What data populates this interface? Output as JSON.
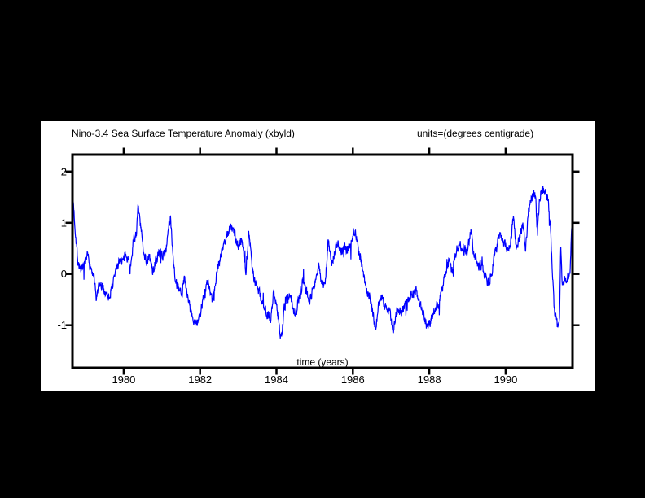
{
  "chart_data": {
    "type": "line",
    "title": "Nino-3.4 Sea Surface Temperature Anomaly (xbyld)",
    "units_label": "units=(degrees centigrade)",
    "xlabel": "time (years)",
    "x_ticks": [
      "1980",
      "1982",
      "1984",
      "1986",
      "1988",
      "1990"
    ],
    "x_tick_values": [
      1980,
      1982,
      1984,
      1986,
      1988,
      1990
    ],
    "y_ticks": [
      "2",
      "1",
      "0",
      "-1"
    ],
    "y_tick_values": [
      2,
      1,
      0,
      -1
    ],
    "xlim": [
      1978.66,
      1991.75
    ],
    "ylim": [
      -1.83,
      2.33
    ],
    "grid": false,
    "legend": "none",
    "line_color": "#0000ff",
    "axis_color": "#000000",
    "plot_bg": "#ffffff",
    "page_bg": "#000000",
    "series": [
      {
        "name": "nino34-sst-anomaly",
        "anchors": [
          [
            1978.66,
            1.62
          ],
          [
            1978.72,
            1.0
          ],
          [
            1978.8,
            0.25
          ],
          [
            1978.9,
            0.05
          ],
          [
            1979.0,
            0.18
          ],
          [
            1979.06,
            0.35
          ],
          [
            1979.15,
            0.1
          ],
          [
            1979.22,
            -0.1
          ],
          [
            1979.28,
            -0.48
          ],
          [
            1979.38,
            -0.22
          ],
          [
            1979.5,
            -0.32
          ],
          [
            1979.6,
            -0.45
          ],
          [
            1979.7,
            -0.25
          ],
          [
            1979.8,
            0.08
          ],
          [
            1979.9,
            0.3
          ],
          [
            1980.0,
            0.25
          ],
          [
            1980.08,
            0.42
          ],
          [
            1980.17,
            0.1
          ],
          [
            1980.25,
            0.6
          ],
          [
            1980.33,
            0.8
          ],
          [
            1980.38,
            1.3
          ],
          [
            1980.44,
            0.95
          ],
          [
            1980.5,
            0.55
          ],
          [
            1980.6,
            0.25
          ],
          [
            1980.68,
            0.32
          ],
          [
            1980.76,
            0.05
          ],
          [
            1980.85,
            0.28
          ],
          [
            1980.95,
            0.42
          ],
          [
            1981.05,
            0.35
          ],
          [
            1981.15,
            0.68
          ],
          [
            1981.23,
            1.1
          ],
          [
            1981.3,
            0.3
          ],
          [
            1981.36,
            -0.12
          ],
          [
            1981.45,
            -0.35
          ],
          [
            1981.52,
            -0.42
          ],
          [
            1981.6,
            -0.05
          ],
          [
            1981.7,
            -0.55
          ],
          [
            1981.8,
            -0.85
          ],
          [
            1981.9,
            -1.0
          ],
          [
            1982.0,
            -0.8
          ],
          [
            1982.1,
            -0.45
          ],
          [
            1982.2,
            -0.15
          ],
          [
            1982.32,
            -0.55
          ],
          [
            1982.45,
            0.1
          ],
          [
            1982.57,
            0.45
          ],
          [
            1982.7,
            0.75
          ],
          [
            1982.8,
            0.95
          ],
          [
            1982.9,
            0.78
          ],
          [
            1983.0,
            0.55
          ],
          [
            1983.1,
            0.65
          ],
          [
            1983.2,
            0.1
          ],
          [
            1983.28,
            0.8
          ],
          [
            1983.38,
            0.05
          ],
          [
            1983.45,
            -0.18
          ],
          [
            1983.55,
            -0.35
          ],
          [
            1983.65,
            -0.6
          ],
          [
            1983.75,
            -0.8
          ],
          [
            1983.85,
            -0.85
          ],
          [
            1983.93,
            -0.35
          ],
          [
            1984.0,
            -0.55
          ],
          [
            1984.08,
            -1.05
          ],
          [
            1984.13,
            -1.22
          ],
          [
            1984.2,
            -0.75
          ],
          [
            1984.3,
            -0.4
          ],
          [
            1984.4,
            -0.55
          ],
          [
            1984.5,
            -0.8
          ],
          [
            1984.6,
            -0.45
          ],
          [
            1984.7,
            -0.1
          ],
          [
            1984.8,
            -0.35
          ],
          [
            1984.88,
            -0.52
          ],
          [
            1985.0,
            -0.15
          ],
          [
            1985.1,
            0.1
          ],
          [
            1985.2,
            -0.15
          ],
          [
            1985.27,
            -0.3
          ],
          [
            1985.35,
            0.62
          ],
          [
            1985.45,
            0.25
          ],
          [
            1985.6,
            0.62
          ],
          [
            1985.7,
            0.4
          ],
          [
            1985.8,
            0.5
          ],
          [
            1985.92,
            0.52
          ],
          [
            1986.05,
            0.88
          ],
          [
            1986.15,
            0.5
          ],
          [
            1986.25,
            0.1
          ],
          [
            1986.35,
            -0.25
          ],
          [
            1986.45,
            -0.5
          ],
          [
            1986.55,
            -0.85
          ],
          [
            1986.6,
            -1.1
          ],
          [
            1986.68,
            -0.55
          ],
          [
            1986.78,
            -0.45
          ],
          [
            1986.88,
            -0.7
          ],
          [
            1986.98,
            -0.72
          ],
          [
            1987.06,
            -1.15
          ],
          [
            1987.15,
            -0.7
          ],
          [
            1987.25,
            -0.76
          ],
          [
            1987.35,
            -0.62
          ],
          [
            1987.45,
            -0.56
          ],
          [
            1987.55,
            -0.42
          ],
          [
            1987.65,
            -0.3
          ],
          [
            1987.75,
            -0.6
          ],
          [
            1987.85,
            -0.8
          ],
          [
            1987.95,
            -1.05
          ],
          [
            1988.05,
            -0.88
          ],
          [
            1988.15,
            -0.7
          ],
          [
            1988.25,
            -0.52
          ],
          [
            1988.36,
            -0.2
          ],
          [
            1988.45,
            0.12
          ],
          [
            1988.52,
            0.25
          ],
          [
            1988.6,
            0.02
          ],
          [
            1988.7,
            0.45
          ],
          [
            1988.8,
            0.6
          ],
          [
            1988.9,
            0.48
          ],
          [
            1989.0,
            0.4
          ],
          [
            1989.08,
            0.88
          ],
          [
            1989.16,
            0.45
          ],
          [
            1989.25,
            0.25
          ],
          [
            1989.35,
            0.15
          ],
          [
            1989.45,
            0.02
          ],
          [
            1989.55,
            -0.18
          ],
          [
            1989.65,
            0.1
          ],
          [
            1989.75,
            0.45
          ],
          [
            1989.86,
            0.85
          ],
          [
            1989.95,
            0.6
          ],
          [
            1990.05,
            0.45
          ],
          [
            1990.12,
            0.6
          ],
          [
            1990.2,
            1.08
          ],
          [
            1990.28,
            0.5
          ],
          [
            1990.36,
            0.75
          ],
          [
            1990.45,
            1.0
          ],
          [
            1990.52,
            0.52
          ],
          [
            1990.6,
            1.25
          ],
          [
            1990.7,
            1.55
          ],
          [
            1990.78,
            1.48
          ],
          [
            1990.83,
            0.82
          ],
          [
            1990.9,
            1.55
          ],
          [
            1990.98,
            1.7
          ],
          [
            1991.06,
            1.58
          ],
          [
            1991.12,
            1.45
          ],
          [
            1991.2,
            0.5
          ],
          [
            1991.27,
            -0.7
          ],
          [
            1991.33,
            -0.85
          ],
          [
            1991.37,
            -1.12
          ],
          [
            1991.41,
            -0.88
          ],
          [
            1991.44,
            0.55
          ],
          [
            1991.48,
            -0.32
          ],
          [
            1991.55,
            -0.12
          ],
          [
            1991.62,
            -0.05
          ],
          [
            1991.68,
            0.02
          ],
          [
            1991.72,
            0.8
          ],
          [
            1991.75,
            1.28
          ]
        ]
      }
    ],
    "noise": {
      "amplitude": 0.09,
      "ar": 0.45,
      "points_per_year": 150,
      "seed": 7,
      "spike_chance": 0.02,
      "spike_amplitude": 0.22
    }
  }
}
